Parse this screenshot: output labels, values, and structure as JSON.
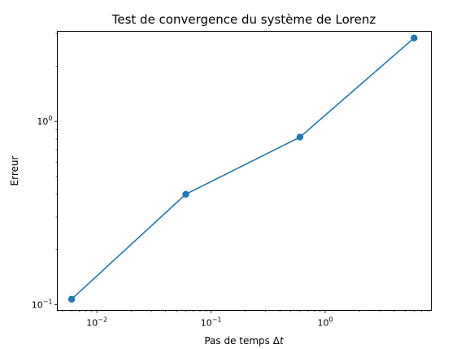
{
  "chart_data": {
    "type": "line",
    "title": "Test de convergence du système de Lorenz",
    "xlabel": "Pas de temps Δt",
    "ylabel": "Erreur",
    "x_scale": "log",
    "y_scale": "log",
    "xlim": [
      0.0045,
      8.5
    ],
    "ylim": [
      0.093,
      3.1
    ],
    "x_ticks": [
      {
        "value": 0.01,
        "base": "10",
        "exp": "−2"
      },
      {
        "value": 0.1,
        "base": "10",
        "exp": "−1"
      },
      {
        "value": 1,
        "base": "10",
        "exp": "0"
      }
    ],
    "y_ticks": [
      {
        "value": 0.1,
        "base": "10",
        "exp": "−1"
      },
      {
        "value": 1,
        "base": "10",
        "exp": "0"
      }
    ],
    "grid": false,
    "marker": "circle",
    "series": [
      {
        "color": "#1f77b4",
        "points": [
          {
            "x": 0.006,
            "y": 0.107
          },
          {
            "x": 0.06,
            "y": 0.4
          },
          {
            "x": 0.6,
            "y": 0.82
          },
          {
            "x": 6.0,
            "y": 2.85
          }
        ]
      }
    ]
  }
}
